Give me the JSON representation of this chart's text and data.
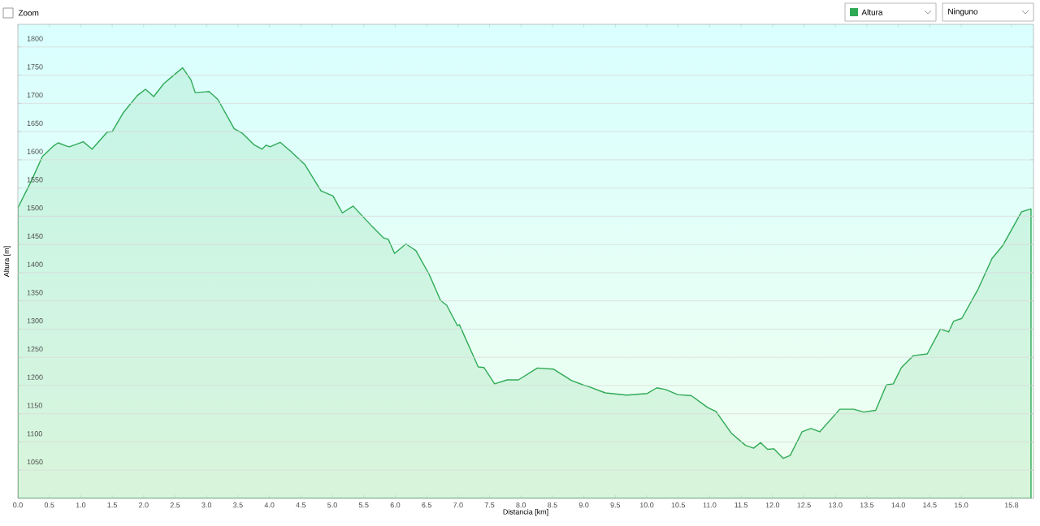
{
  "chart_data": {
    "type": "area",
    "xlabel": "Distancia [km]",
    "ylabel": "Altura [m]",
    "annotations": [
      "Zoom",
      "Altura",
      "Ninguno"
    ],
    "x": [
      0,
      0.22,
      0.39,
      0.56,
      0.64,
      0.78,
      0.82,
      1.04,
      1.18,
      1.42,
      1.5,
      1.68,
      1.9,
      2.03,
      2.16,
      2.32,
      2.49,
      2.62,
      2.75,
      2.82,
      3.04,
      3.18,
      3.44,
      3.57,
      3.75,
      3.88,
      3.95,
      4.01,
      4.17,
      4.34,
      4.56,
      4.82,
      5.01,
      5.16,
      5.33,
      5.64,
      5.81,
      5.89,
      5.99,
      6.17,
      6.33,
      6.54,
      6.72,
      6.82,
      6.99,
      7.02,
      7.32,
      7.41,
      7.58,
      7.78,
      7.96,
      8.26,
      8.52,
      8.8,
      8.99,
      9.08,
      9.34,
      9.68,
      10.01,
      10.16,
      10.3,
      10.49,
      10.71,
      10.97,
      11.1,
      11.35,
      11.57,
      11.7,
      11.81,
      11.92,
      12.02,
      12.17,
      12.28,
      12.47,
      12.61,
      12.75,
      13.07,
      13.29,
      13.45,
      13.64,
      13.81,
      13.92,
      14.05,
      14.24,
      14.46,
      14.67,
      14.8,
      14.88,
      15.01,
      15.27,
      15.49,
      15.66,
      15.96,
      16.11
    ],
    "series": [
      {
        "color": "#2eaa55",
        "values": [
          1515,
          1564,
          1606,
          1624,
          1630,
          1624,
          1623,
          1632,
          1619,
          1649,
          1650,
          1684,
          1714,
          1725,
          1712,
          1735,
          1751,
          1763,
          1742,
          1719,
          1721,
          1707,
          1655,
          1647,
          1627,
          1619,
          1626,
          1623,
          1631,
          1615,
          1592,
          1545,
          1536,
          1506,
          1518,
          1481,
          1462,
          1459,
          1434,
          1451,
          1439,
          1397,
          1351,
          1342,
          1306,
          1308,
          1233,
          1232,
          1203,
          1210,
          1210,
          1231,
          1229,
          1209,
          1201,
          1198,
          1187,
          1183,
          1186,
          1196,
          1193,
          1184,
          1182,
          1161,
          1154,
          1115,
          1094,
          1089,
          1099,
          1087,
          1088,
          1071,
          1076,
          1118,
          1124,
          1118,
          1158,
          1158,
          1153,
          1156,
          1201,
          1203,
          1232,
          1253,
          1256,
          1300,
          1295,
          1314,
          1319,
          1371,
          1425,
          1448,
          1508,
          1513
        ]
      }
    ],
    "xlim": [
      0,
      16.15
    ],
    "ylim": [
      1000,
      1840
    ],
    "xticks": [
      {
        "value": 0,
        "label": "0.0"
      },
      {
        "value": 0.5,
        "label": "0.5"
      },
      {
        "value": 1,
        "label": "1.0"
      },
      {
        "value": 1.5,
        "label": "1.5"
      },
      {
        "value": 2,
        "label": "2.0"
      },
      {
        "value": 2.5,
        "label": "2.5"
      },
      {
        "value": 3,
        "label": "3.0"
      },
      {
        "value": 3.5,
        "label": "3.5"
      },
      {
        "value": 4,
        "label": "4.0"
      },
      {
        "value": 4.5,
        "label": "4.5"
      },
      {
        "value": 5,
        "label": "5.0"
      },
      {
        "value": 5.5,
        "label": "5.5"
      },
      {
        "value": 6,
        "label": "6.0"
      },
      {
        "value": 6.5,
        "label": "6.5"
      },
      {
        "value": 7,
        "label": "7.0"
      },
      {
        "value": 7.5,
        "label": "7.5"
      },
      {
        "value": 8,
        "label": "8.0"
      },
      {
        "value": 8.5,
        "label": "8.5"
      },
      {
        "value": 9,
        "label": "9.0"
      },
      {
        "value": 9.5,
        "label": "9.5"
      },
      {
        "value": 10,
        "label": "10.0"
      },
      {
        "value": 10.5,
        "label": "10.5"
      },
      {
        "value": 11,
        "label": "11.0"
      },
      {
        "value": 11.5,
        "label": "11.5"
      },
      {
        "value": 12,
        "label": "12.0"
      },
      {
        "value": 12.5,
        "label": "12.5"
      },
      {
        "value": 13,
        "label": "13.0"
      },
      {
        "value": 13.5,
        "label": "13.5"
      },
      {
        "value": 14,
        "label": "14.0"
      },
      {
        "value": 14.5,
        "label": "14.5"
      },
      {
        "value": 15,
        "label": "15.0"
      },
      15.8
    ],
    "yticks": [
      1050,
      1100,
      1150,
      1200,
      1250,
      1300,
      1350,
      1400,
      1450,
      1500,
      1550,
      1600,
      1650,
      1700,
      1750,
      1800
    ],
    "grid": "y"
  }
}
